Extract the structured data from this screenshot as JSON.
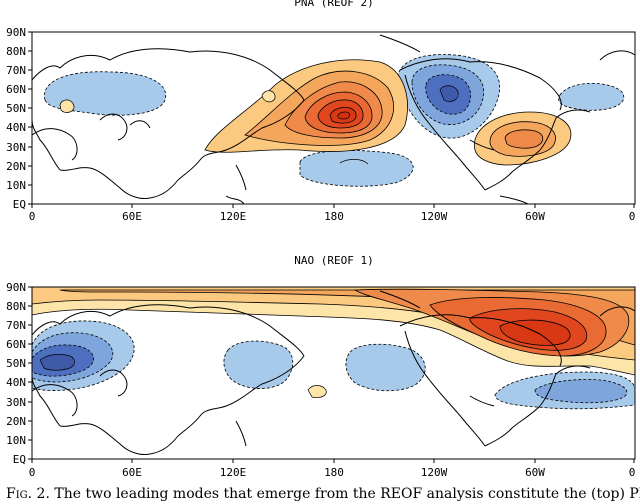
{
  "figure": {
    "caption_lead": "Fig. 2.",
    "caption_text": "The two leading modes that emerge from the REOF analysis constitute the (top) PNA"
  },
  "colors": {
    "pos_strong": "#e0471f",
    "pos_mid": "#f08a4b",
    "pos_light": "#fbc97f",
    "pos_faint": "#fde4a8",
    "neg_light": "#a7c9ea",
    "neg_mid": "#7fa6dc",
    "neg_strong": "#4e6fbf",
    "land_outline": "#000000"
  },
  "panels": [
    {
      "id": "pna",
      "title": "PNA (REOF 2)",
      "lat_labels": [
        "90N",
        "80N",
        "70N",
        "60N",
        "50N",
        "40N",
        "30N",
        "20N",
        "10N",
        "EQ"
      ],
      "lon_labels": [
        "0",
        "60E",
        "120E",
        "180",
        "120W",
        "60W",
        "0"
      ],
      "centers": [
        {
          "sign": "positive",
          "lon": 195,
          "lat": 45,
          "level": 6
        },
        {
          "sign": "negative",
          "lon": 250,
          "lat": 55,
          "level": 3
        },
        {
          "sign": "positive",
          "lon": 275,
          "lat": 35,
          "level": 2
        },
        {
          "sign": "negative",
          "lon": 60,
          "lat": 58,
          "level": 1
        },
        {
          "sign": "negative",
          "lon": 200,
          "lat": 20,
          "level": 1
        },
        {
          "sign": "negative",
          "lon": 310,
          "lat": 55,
          "level": 1
        }
      ]
    },
    {
      "id": "nao",
      "title": "NAO (REOF 1)",
      "lat_labels": [
        "90N",
        "80N",
        "70N",
        "60N",
        "50N",
        "40N",
        "30N",
        "20N",
        "10N",
        "EQ"
      ],
      "lon_labels": [
        "0",
        "60E",
        "120E",
        "180",
        "120W",
        "60W",
        "0"
      ],
      "centers": [
        {
          "sign": "positive",
          "lon": 300,
          "lat": 68,
          "level": 6
        },
        {
          "sign": "negative",
          "lon": 20,
          "lat": 50,
          "level": 4
        },
        {
          "sign": "negative",
          "lon": 320,
          "lat": 40,
          "level": 2
        },
        {
          "sign": "negative",
          "lon": 140,
          "lat": 50,
          "level": 1
        },
        {
          "sign": "negative",
          "lon": 225,
          "lat": 52,
          "level": 1
        }
      ]
    }
  ]
}
